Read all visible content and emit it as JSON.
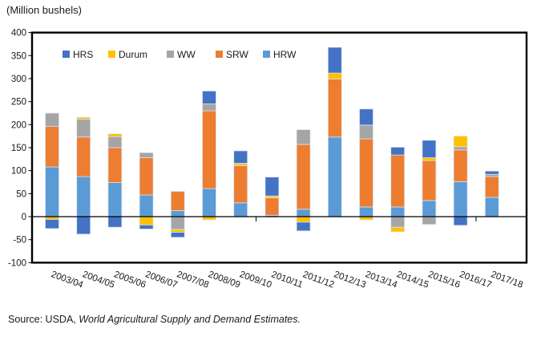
{
  "header": {
    "units_label": "(Million bushels)"
  },
  "source": {
    "prefix": "Source: USDA, ",
    "publication": "World Agricultural Supply and Demand Estimates."
  },
  "chart_data": {
    "type": "bar",
    "stacked": true,
    "title": "(Million bushels)",
    "xlabel": "",
    "ylabel": "Million bushels",
    "ylim": [
      -100,
      400
    ],
    "ytick_step": 50,
    "grid": false,
    "legend_position": "top-left-inside",
    "legend_order": [
      "HRS",
      "Durum",
      "WW",
      "SRW",
      "HRW"
    ],
    "stacking_order": [
      "HRW",
      "SRW",
      "WW",
      "Durum",
      "HRS"
    ],
    "categories": [
      "2003/04",
      "2004/05",
      "2005/06",
      "2006/07",
      "2007/08",
      "2008/09",
      "2009/10",
      "2010/11",
      "2011/12",
      "2012/13",
      "2013/14",
      "2014/15",
      "2015/16",
      "2016/17",
      "2017/18"
    ],
    "series": [
      {
        "name": "HRS",
        "color": "#4472C4",
        "values": [
          -20,
          -38,
          -23,
          -9,
          -11,
          28,
          27,
          41,
          -19,
          56,
          35,
          17,
          38,
          -19,
          7
        ]
      },
      {
        "name": "Durum",
        "color": "#FFC000",
        "values": [
          -6,
          4,
          6,
          -18,
          -6,
          -7,
          5,
          4,
          -12,
          13,
          -7,
          -10,
          6,
          23,
          0
        ]
      },
      {
        "name": "WW",
        "color": "#A5A5A5",
        "values": [
          29,
          39,
          24,
          11,
          -28,
          15,
          0,
          0,
          32,
          0,
          30,
          -23,
          -17,
          7,
          5
        ]
      },
      {
        "name": "SRW",
        "color": "#ED7D31",
        "values": [
          88,
          86,
          76,
          81,
          42,
          169,
          81,
          38,
          141,
          126,
          148,
          113,
          87,
          69,
          45
        ]
      },
      {
        "name": "HRW",
        "color": "#5B9BD5",
        "values": [
          108,
          87,
          74,
          47,
          13,
          61,
          30,
          3,
          16,
          173,
          21,
          21,
          35,
          76,
          42
        ]
      }
    ]
  }
}
